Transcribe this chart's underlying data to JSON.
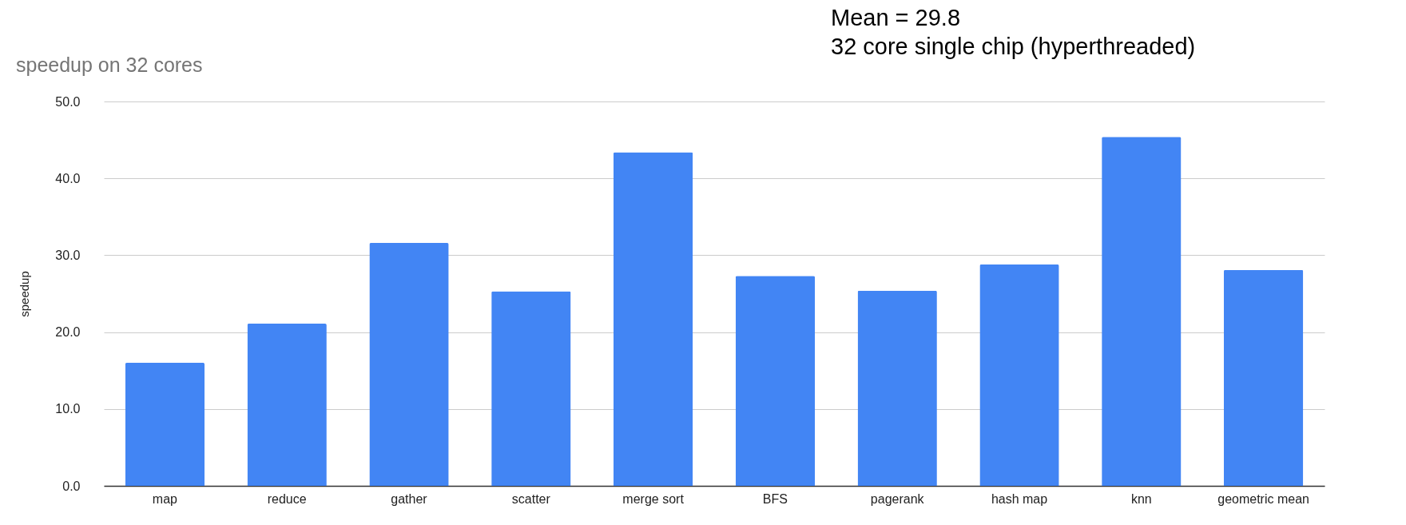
{
  "chart_data": {
    "type": "bar",
    "title": "speedup on 32 cores",
    "ylabel": "speedup",
    "categories": [
      "map",
      "reduce",
      "gather",
      "scatter",
      "merge sort",
      "BFS",
      "pagerank",
      "hash map",
      "knn",
      "geometric mean"
    ],
    "values": [
      16.0,
      21.1,
      31.6,
      25.3,
      43.4,
      27.3,
      25.4,
      28.8,
      45.4,
      28.1
    ],
    "color": "#4285f4",
    "ylim": [
      0,
      50
    ],
    "yticks": [
      {
        "value": 0,
        "label": "0.0"
      },
      {
        "value": 10,
        "label": "10.0"
      },
      {
        "value": 20,
        "label": "20.0"
      },
      {
        "value": 30,
        "label": "30.0"
      },
      {
        "value": 40,
        "label": "40.0"
      },
      {
        "value": 50,
        "label": "50.0"
      }
    ],
    "grid": "y",
    "annotations": [
      "Mean = 29.8",
      "32 core single chip (hyperthreaded)"
    ]
  }
}
